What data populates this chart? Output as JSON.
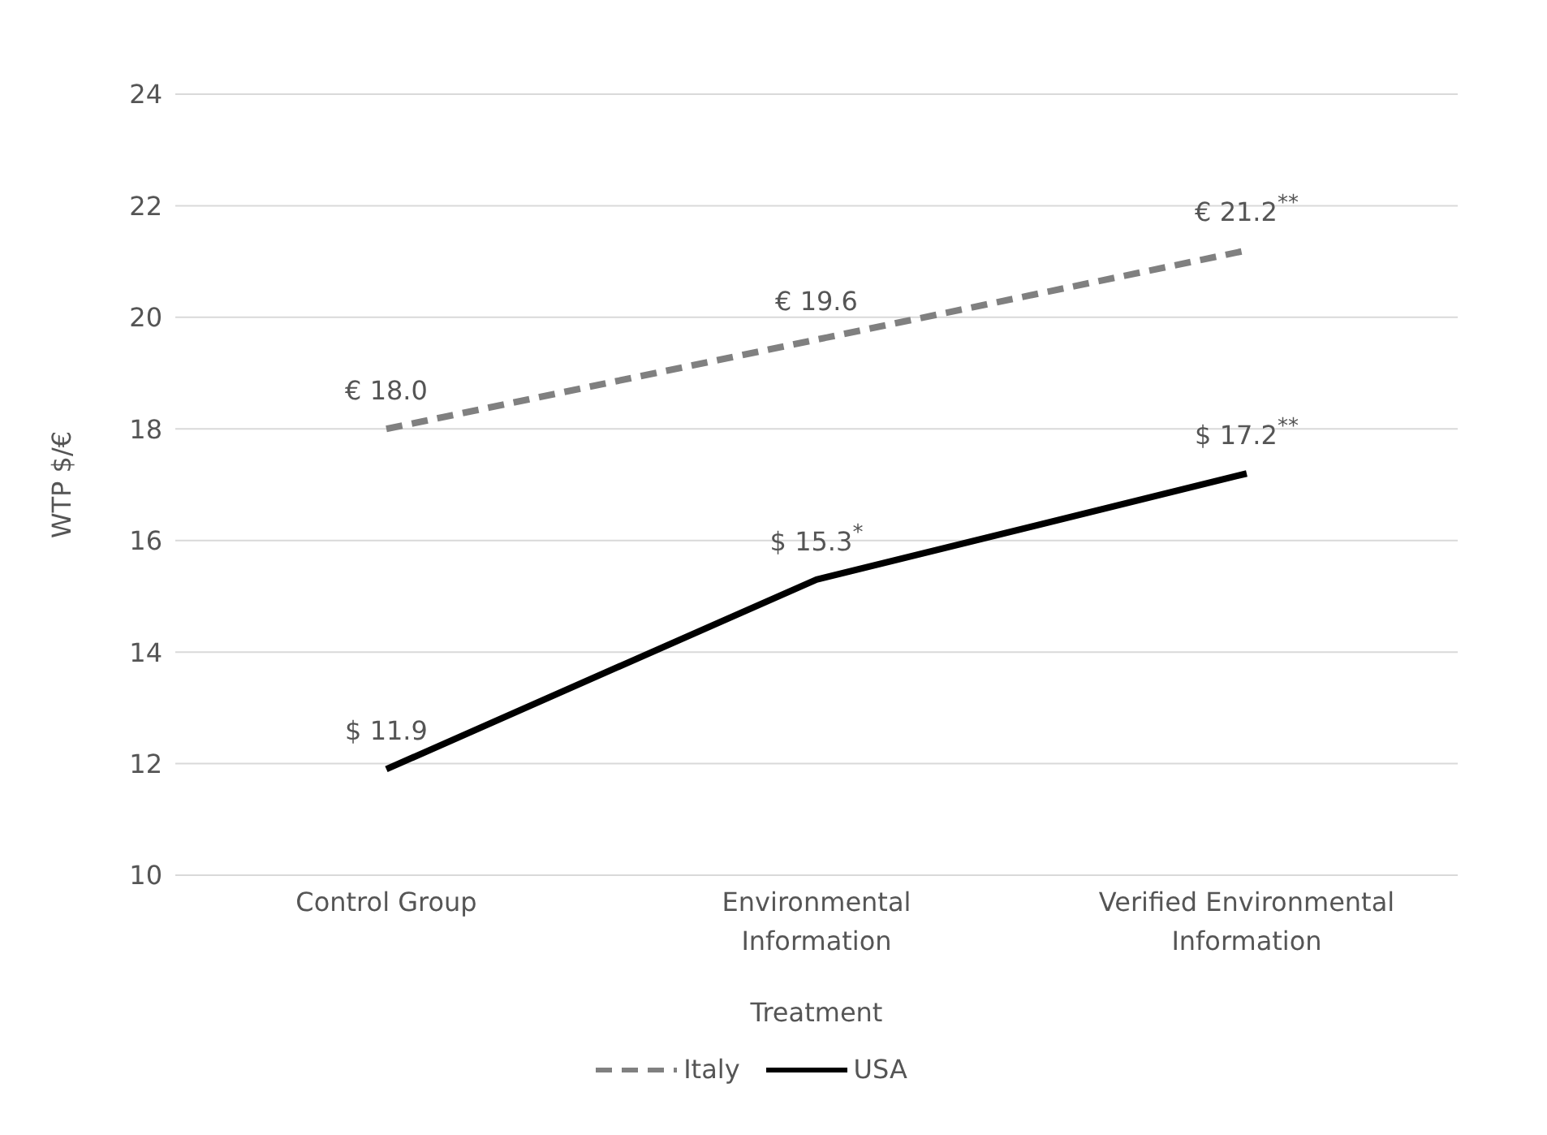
{
  "chart_data": {
    "type": "line",
    "xlabel": "Treatment",
    "ylabel": "WTP $/€",
    "categories": [
      "Control Group",
      "Environmental Information",
      "Verified Environmental Information"
    ],
    "series": [
      {
        "name": "Italy",
        "color": "#808080",
        "line_style": "dashed",
        "values": [
          18.0,
          19.6,
          21.2
        ],
        "value_labels": [
          "€ 18.0",
          "€ 19.6",
          "€ 21.2$^{**}$"
        ]
      },
      {
        "name": "USA",
        "color": "#000000",
        "line_style": "solid",
        "values": [
          11.9,
          15.3,
          17.2
        ],
        "value_labels": [
          "$ 11.9",
          "$ 15.3$^{*}$",
          "$ 17.2$^{**}$"
        ]
      }
    ],
    "ylim": [
      10,
      24
    ],
    "yticks": [
      10,
      12,
      14,
      16,
      18,
      20,
      22,
      24
    ],
    "grid": "y",
    "legend": "bottom",
    "marker": "none"
  }
}
